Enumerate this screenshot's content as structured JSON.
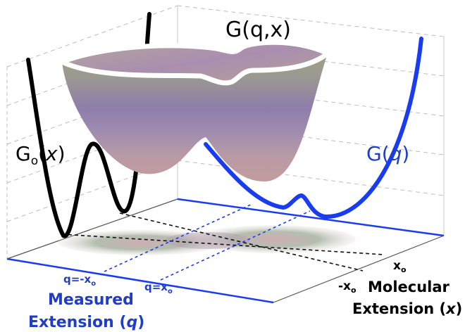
{
  "labels": {
    "surface_title": "G(q,x)",
    "molecular_label_base": "G",
    "molecular_label_sub": "o",
    "molecular_label_var": "x",
    "measured_label_base": "G",
    "measured_label_var": "q",
    "x0_label": "x",
    "x0_sub": "o",
    "neg_x0_label": "-x",
    "neg_x0_sub": "o",
    "q_neg_label": "q=-x",
    "q_neg_sub": "o",
    "q_pos_label": "q=x",
    "q_pos_sub": "o",
    "measured_axis_line1": "Measured",
    "measured_axis_line2": "Extension (",
    "measured_axis_var": "q",
    "measured_axis_close": ")",
    "molecular_axis_line1": "Molecular",
    "molecular_axis_line2": "Extension (",
    "molecular_axis_var": "x",
    "molecular_axis_close": ")"
  },
  "colors": {
    "measured_curve": "#1a3cf0",
    "molecular_curve": "#000000",
    "measured_label_color": "#1f3ec8",
    "surface_top": "#a8a087",
    "surface_mid": "#8f7dac",
    "surface_bottom": "#c29c9c"
  }
}
